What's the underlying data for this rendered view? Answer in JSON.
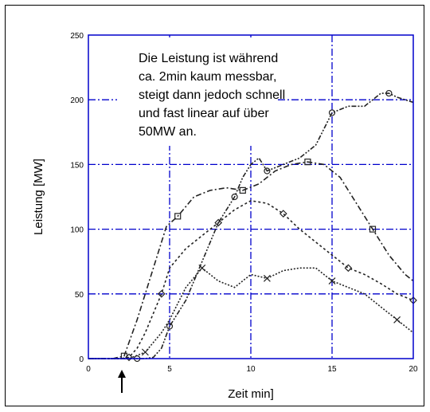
{
  "chart_data": {
    "type": "line",
    "xlabel": "Zeit min]",
    "ylabel": "Leistung [MW]",
    "xlim": [
      0,
      20
    ],
    "ylim": [
      0,
      250
    ],
    "x_ticks": [
      "0",
      "5",
      "10",
      "15",
      "20"
    ],
    "y_ticks": [
      "0",
      "50",
      "100",
      "150",
      "200",
      "250"
    ],
    "grid": true,
    "annotation": {
      "lines": [
        "Die Leistung ist während",
        "ca. 2min kaum messbar,",
        "steigt dann jedoch schnell",
        "und fast linear auf über",
        "50MW an."
      ]
    },
    "series": [
      {
        "marker": "square",
        "x": [
          0,
          1.5,
          2.2,
          3,
          4,
          4.8,
          5.5,
          6.5,
          7.5,
          8.5,
          9.5,
          10.5,
          11.5,
          12.5,
          13.5,
          14.5,
          15.5,
          16.5,
          17.5,
          18.5,
          19.5,
          20
        ],
        "y": [
          0,
          0,
          2,
          30,
          70,
          102,
          110,
          125,
          130,
          132,
          130,
          135,
          145,
          150,
          152,
          150,
          140,
          120,
          100,
          80,
          65,
          60
        ]
      },
      {
        "marker": "circle",
        "x": [
          0,
          1.5,
          3,
          3.5,
          4,
          4.5,
          5,
          6,
          7,
          8,
          9,
          9.5,
          10,
          10.5,
          11,
          12,
          13,
          14,
          15,
          16,
          17,
          18,
          18.5,
          19,
          20
        ],
        "y": [
          0,
          0,
          0,
          0,
          1,
          8,
          25,
          45,
          75,
          105,
          125,
          140,
          150,
          155,
          145,
          150,
          155,
          165,
          190,
          195,
          195,
          205,
          205,
          202,
          198
        ]
      },
      {
        "marker": "diamond",
        "x": [
          0,
          2,
          2.5,
          3,
          3.5,
          4,
          4.5,
          5,
          6,
          7,
          8,
          9,
          10,
          11,
          12,
          13,
          14,
          15,
          16,
          17,
          18,
          19,
          20
        ],
        "y": [
          0,
          0,
          1,
          8,
          20,
          35,
          50,
          70,
          85,
          95,
          105,
          115,
          122,
          120,
          112,
          100,
          90,
          80,
          70,
          65,
          58,
          50,
          45
        ]
      },
      {
        "marker": "x",
        "x": [
          0,
          2.5,
          3.5,
          4.5,
          5,
          6,
          7,
          8,
          9,
          10,
          11,
          12,
          13,
          14,
          15,
          16,
          17,
          18,
          19,
          20
        ],
        "y": [
          0,
          0,
          5,
          20,
          30,
          55,
          70,
          60,
          55,
          65,
          62,
          68,
          70,
          70,
          60,
          55,
          50,
          40,
          30,
          20
        ]
      }
    ]
  }
}
